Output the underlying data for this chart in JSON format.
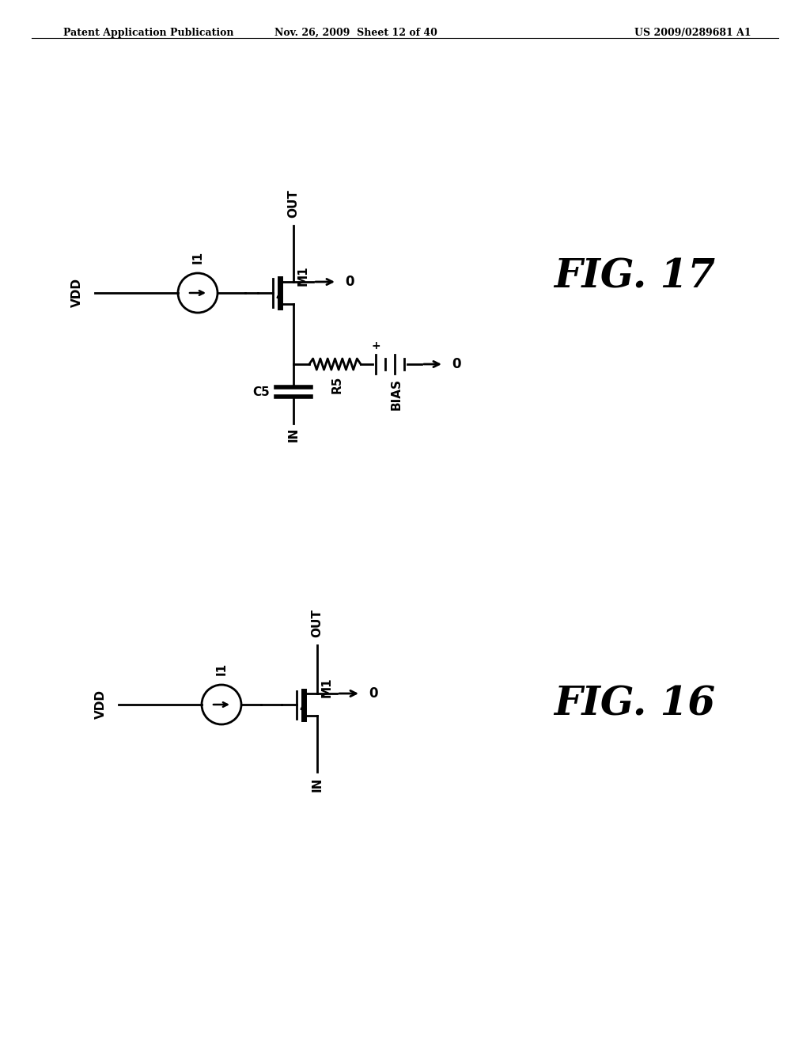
{
  "page_width": 10.24,
  "page_height": 13.2,
  "background_color": "#ffffff",
  "header_left": "Patent Application Publication",
  "header_center": "Nov. 26, 2009  Sheet 12 of 40",
  "header_right": "US 2009/0289681 A1",
  "line_color": "#000000",
  "lw": 2.0
}
